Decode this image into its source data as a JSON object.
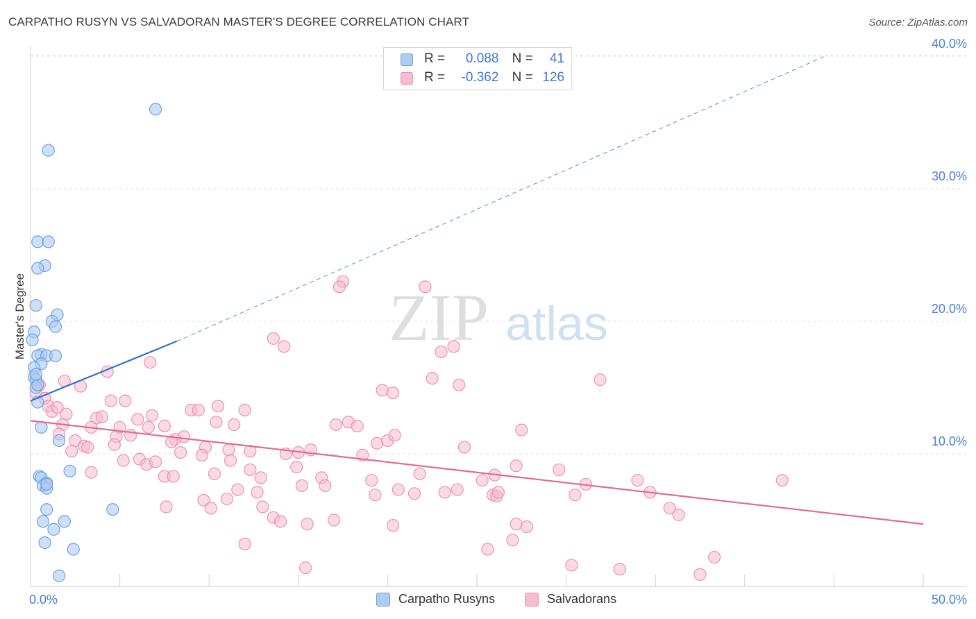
{
  "title": "CARPATHO RUSYN VS SALVADORAN MASTER'S DEGREE CORRELATION CHART",
  "source": "Source: ZipAtlas.com",
  "watermark": {
    "zip": "ZIP",
    "atlas": "atlas"
  },
  "colors": {
    "blue_fill": "#aecbf3",
    "blue_stroke": "#6fa0e0",
    "blue_line": "#2f6fce",
    "pink_fill": "#f6bcd0",
    "pink_stroke": "#ee90b2",
    "pink_line": "#e06a98",
    "axis_text": "#4a7fd0",
    "grid": "#e2e2e2"
  },
  "legend_top": {
    "rows": [
      {
        "r_label": "R =",
        "r_value": "0.088",
        "n_label": "N =",
        "n_value": "41"
      },
      {
        "r_label": "R =",
        "r_value": "-0.362",
        "n_label": "N =",
        "n_value": "126"
      }
    ]
  },
  "legend_bottom": {
    "items": [
      "Carpatho Rusyns",
      "Salvadorans"
    ]
  },
  "chart_data": {
    "type": "scatter",
    "title": "CARPATHO RUSYN VS SALVADORAN MASTER'S DEGREE CORRELATION CHART",
    "xlabel": "",
    "ylabel": "Master's Degree",
    "xlim": [
      0,
      50
    ],
    "ylim": [
      0,
      42
    ],
    "x_tick_labels": [
      "0.0%",
      "50.0%"
    ],
    "y_ticks": [
      10,
      20,
      30,
      40
    ],
    "y_tick_labels": [
      "10.0%",
      "20.0%",
      "30.0%",
      "40.0%"
    ],
    "grid": true,
    "series": [
      {
        "name": "Carpatho Rusyns",
        "r": 0.088,
        "n": 41,
        "trend": {
          "x": [
            0,
            8.2
          ],
          "y": [
            14.0,
            18.5
          ],
          "dashed_to": {
            "x": 44.5,
            "y": 40.0
          }
        },
        "points": [
          [
            7.0,
            36.0
          ],
          [
            1.0,
            32.9
          ],
          [
            0.4,
            26.0
          ],
          [
            1.0,
            26.0
          ],
          [
            0.8,
            24.2
          ],
          [
            0.4,
            24.0
          ],
          [
            0.3,
            21.2
          ],
          [
            1.5,
            20.5
          ],
          [
            1.2,
            20.0
          ],
          [
            1.4,
            19.6
          ],
          [
            0.2,
            19.2
          ],
          [
            0.1,
            18.6
          ],
          [
            0.6,
            17.5
          ],
          [
            0.4,
            17.4
          ],
          [
            0.9,
            17.4
          ],
          [
            1.4,
            17.4
          ],
          [
            0.6,
            16.8
          ],
          [
            0.2,
            16.5
          ],
          [
            0.2,
            15.8
          ],
          [
            0.3,
            15.6
          ],
          [
            0.3,
            15.0
          ],
          [
            0.4,
            13.9
          ],
          [
            0.6,
            12.0
          ],
          [
            1.6,
            11.0
          ],
          [
            0.5,
            8.3
          ],
          [
            0.6,
            8.2
          ],
          [
            0.9,
            7.8
          ],
          [
            0.7,
            7.6
          ],
          [
            0.9,
            7.4
          ],
          [
            2.2,
            8.7
          ],
          [
            0.9,
            5.8
          ],
          [
            4.6,
            5.8
          ],
          [
            0.7,
            4.9
          ],
          [
            1.9,
            4.9
          ],
          [
            1.3,
            4.3
          ],
          [
            0.8,
            3.3
          ],
          [
            2.4,
            2.8
          ],
          [
            1.6,
            0.8
          ],
          [
            0.9,
            7.7
          ],
          [
            0.4,
            15.2
          ],
          [
            0.3,
            16.0
          ]
        ]
      },
      {
        "name": "Salvadorans",
        "r": -0.362,
        "n": 126,
        "trend": {
          "x": [
            0,
            50
          ],
          "y": [
            12.5,
            4.7
          ]
        },
        "points": [
          [
            0.5,
            15.2
          ],
          [
            0.3,
            14.6
          ],
          [
            0.8,
            14.2
          ],
          [
            1.0,
            13.6
          ],
          [
            1.2,
            13.2
          ],
          [
            1.5,
            13.5
          ],
          [
            2.0,
            13.0
          ],
          [
            1.8,
            12.2
          ],
          [
            1.6,
            11.5
          ],
          [
            2.5,
            11.0
          ],
          [
            3.0,
            10.6
          ],
          [
            2.3,
            10.2
          ],
          [
            3.2,
            10.5
          ],
          [
            1.9,
            15.5
          ],
          [
            2.8,
            15.1
          ],
          [
            4.3,
            16.2
          ],
          [
            6.7,
            16.9
          ],
          [
            4.5,
            14.0
          ],
          [
            5.3,
            14.0
          ],
          [
            3.7,
            12.7
          ],
          [
            4.0,
            12.8
          ],
          [
            3.4,
            12.0
          ],
          [
            4.8,
            11.3
          ],
          [
            5.0,
            12.0
          ],
          [
            5.6,
            11.4
          ],
          [
            6.0,
            12.6
          ],
          [
            6.6,
            12.0
          ],
          [
            6.8,
            12.9
          ],
          [
            7.5,
            12.1
          ],
          [
            8.1,
            11.1
          ],
          [
            8.6,
            11.3
          ],
          [
            9.0,
            13.3
          ],
          [
            9.4,
            13.3
          ],
          [
            10.5,
            13.6
          ],
          [
            10.4,
            12.4
          ],
          [
            11.4,
            12.2
          ],
          [
            12.0,
            13.3
          ],
          [
            9.8,
            10.5
          ],
          [
            11.1,
            10.3
          ],
          [
            12.3,
            10.2
          ],
          [
            9.6,
            9.9
          ],
          [
            8.4,
            10.1
          ],
          [
            7.9,
            10.9
          ],
          [
            4.7,
            10.7
          ],
          [
            5.2,
            9.5
          ],
          [
            6.1,
            9.6
          ],
          [
            6.5,
            9.2
          ],
          [
            7.0,
            9.4
          ],
          [
            7.5,
            8.3
          ],
          [
            8.0,
            8.3
          ],
          [
            10.3,
            8.5
          ],
          [
            11.2,
            9.5
          ],
          [
            12.3,
            8.8
          ],
          [
            12.9,
            8.2
          ],
          [
            11.6,
            7.3
          ],
          [
            12.7,
            7.1
          ],
          [
            3.4,
            8.6
          ],
          [
            7.6,
            6.0
          ],
          [
            9.7,
            6.5
          ],
          [
            10.1,
            5.9
          ],
          [
            11.0,
            6.6
          ],
          [
            13.0,
            6.0
          ],
          [
            13.6,
            5.2
          ],
          [
            14.0,
            4.9
          ],
          [
            15.5,
            4.7
          ],
          [
            17.0,
            5.0
          ],
          [
            16.3,
            8.2
          ],
          [
            16.5,
            7.6
          ],
          [
            15.2,
            7.6
          ],
          [
            14.3,
            10.0
          ],
          [
            15.0,
            10.1
          ],
          [
            15.7,
            10.3
          ],
          [
            14.9,
            9.0
          ],
          [
            17.1,
            12.2
          ],
          [
            17.8,
            12.4
          ],
          [
            18.3,
            12.1
          ],
          [
            18.6,
            9.9
          ],
          [
            19.1,
            8.0
          ],
          [
            19.4,
            10.8
          ],
          [
            20.0,
            11.0
          ],
          [
            20.4,
            11.4
          ],
          [
            19.7,
            14.8
          ],
          [
            20.3,
            14.6
          ],
          [
            19.3,
            6.9
          ],
          [
            20.6,
            7.3
          ],
          [
            21.8,
            8.5
          ],
          [
            21.5,
            7.0
          ],
          [
            22.5,
            15.7
          ],
          [
            23.0,
            17.7
          ],
          [
            23.7,
            18.1
          ],
          [
            24.0,
            15.2
          ],
          [
            23.2,
            7.1
          ],
          [
            23.9,
            7.3
          ],
          [
            24.3,
            10.5
          ],
          [
            25.3,
            8.0
          ],
          [
            26.0,
            8.4
          ],
          [
            25.9,
            6.9
          ],
          [
            26.1,
            6.8
          ],
          [
            26.2,
            7.1
          ],
          [
            27.2,
            9.1
          ],
          [
            27.5,
            11.8
          ],
          [
            27.2,
            4.7
          ],
          [
            27.8,
            4.5
          ],
          [
            27.0,
            3.5
          ],
          [
            25.6,
            2.8
          ],
          [
            29.6,
            8.8
          ],
          [
            30.5,
            6.9
          ],
          [
            31.1,
            7.7
          ],
          [
            31.9,
            15.6
          ],
          [
            30.3,
            1.6
          ],
          [
            33.0,
            1.3
          ],
          [
            34.0,
            8.0
          ],
          [
            34.7,
            7.1
          ],
          [
            35.8,
            5.9
          ],
          [
            36.3,
            5.4
          ],
          [
            37.5,
            0.9
          ],
          [
            38.3,
            2.2
          ],
          [
            42.1,
            8.0
          ],
          [
            20.3,
            4.6
          ],
          [
            17.5,
            23.0
          ],
          [
            17.3,
            22.6
          ],
          [
            22.1,
            22.6
          ],
          [
            13.6,
            18.7
          ],
          [
            14.2,
            18.1
          ],
          [
            15.4,
            1.4
          ],
          [
            12.0,
            3.2
          ]
        ]
      }
    ]
  }
}
